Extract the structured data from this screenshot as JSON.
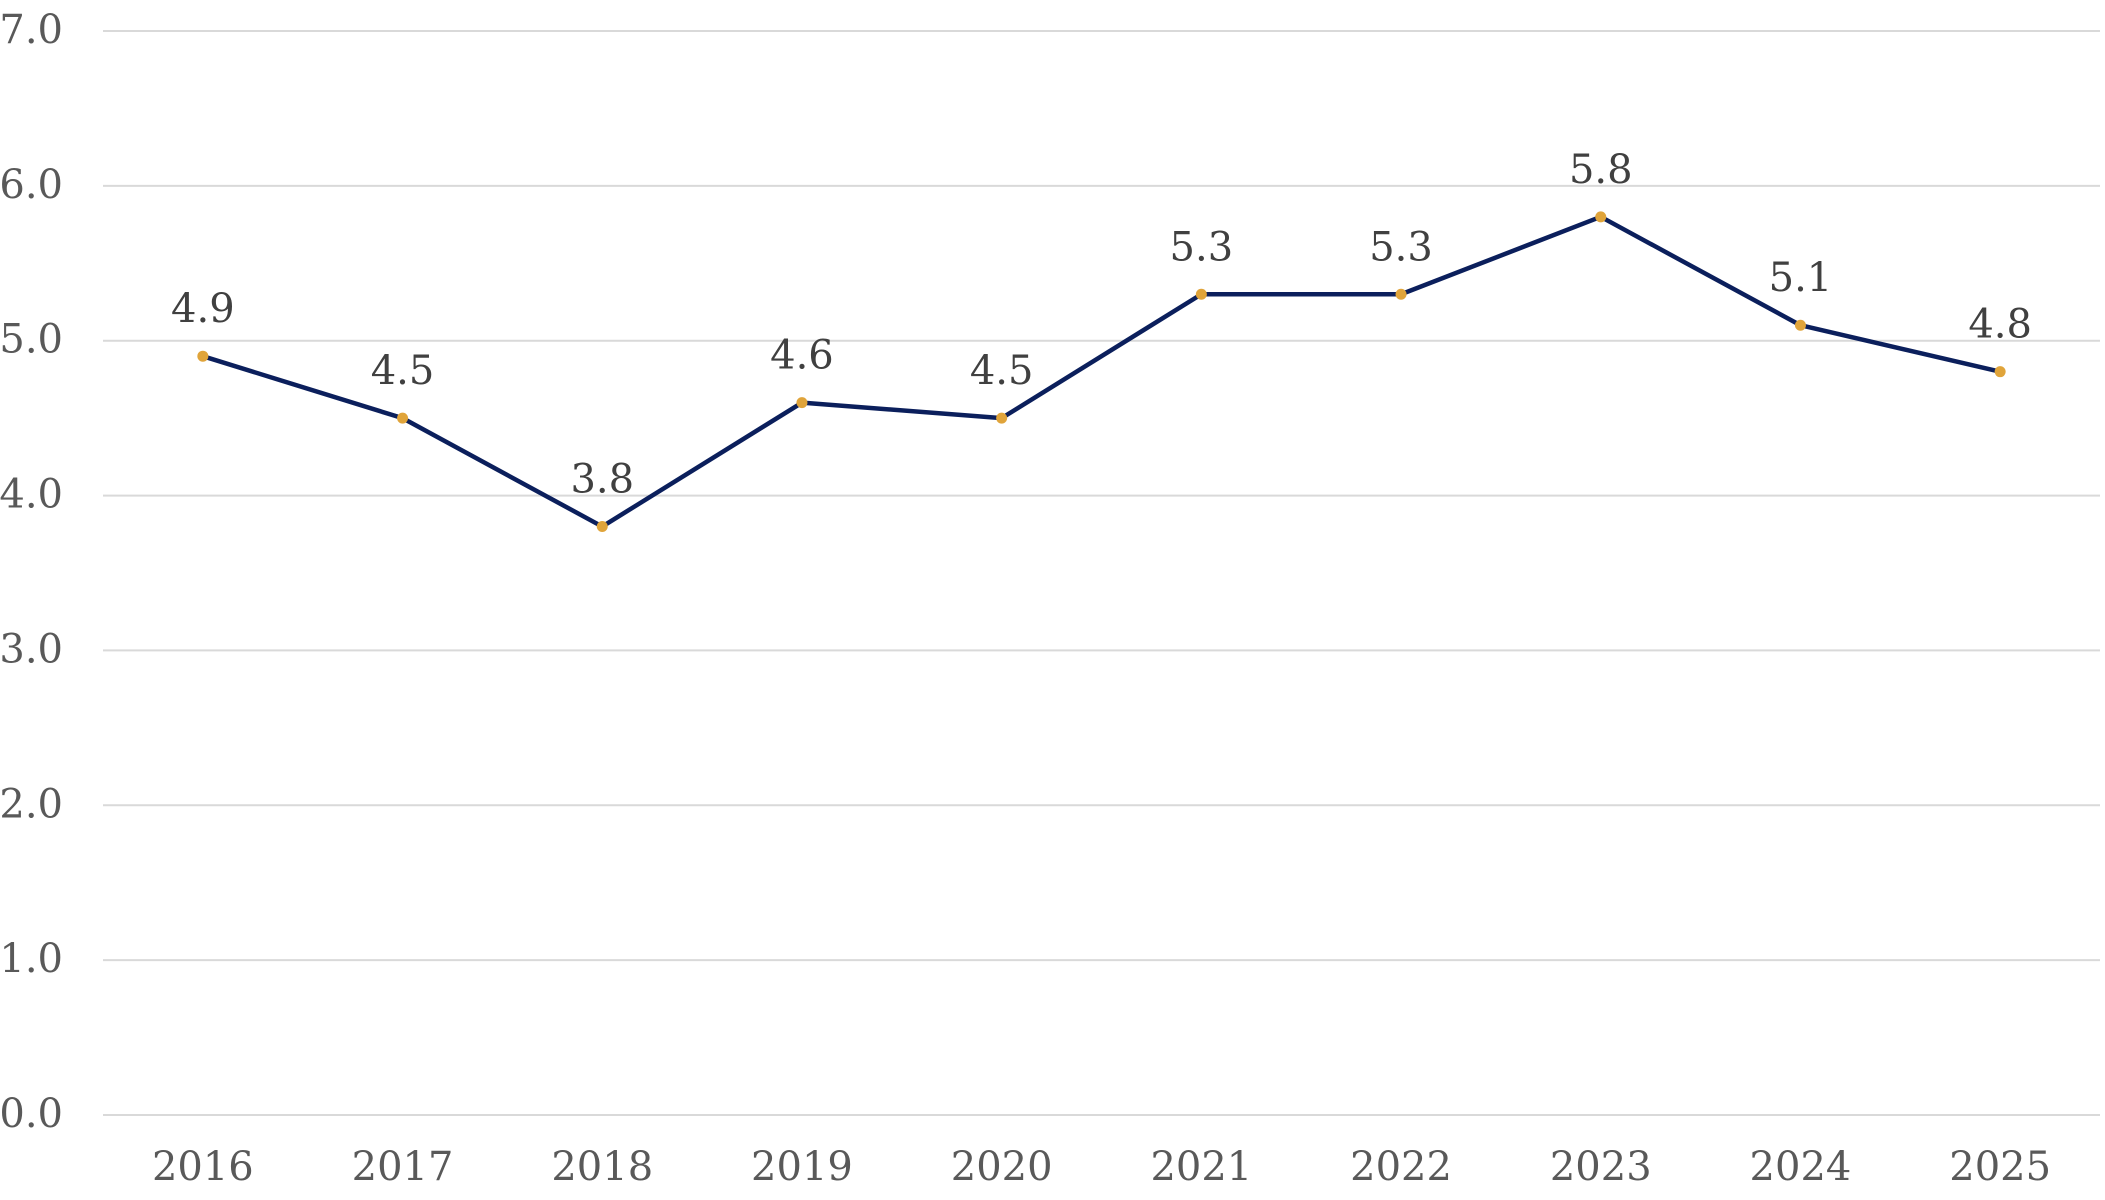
{
  "chart_data": {
    "type": "line",
    "title": "",
    "xlabel": "",
    "ylabel": "",
    "categories": [
      "2016",
      "2017",
      "2018",
      "2019",
      "2020",
      "2021",
      "2022",
      "2023",
      "2024",
      "2025"
    ],
    "series": [
      {
        "values": [
          4.9,
          4.5,
          3.8,
          4.6,
          4.5,
          5.3,
          5.3,
          5.8,
          5.1,
          4.8
        ],
        "labels": [
          "4.9",
          "4.5",
          "3.8",
          "4.6",
          "4.5",
          "5.3",
          "5.3",
          "5.8",
          "5.1",
          "4.8"
        ],
        "line_color": "#0b1f5c",
        "marker_color": "#e0a43a"
      }
    ],
    "ylim": [
      0,
      7
    ],
    "yticks": [
      "0.0",
      "1.0",
      "2.0",
      "3.0",
      "4.0",
      "5.0",
      "6.0",
      "7.0"
    ],
    "grid": true,
    "grid_color": "#d9d9d9",
    "legend": "none",
    "data_labels": true
  }
}
